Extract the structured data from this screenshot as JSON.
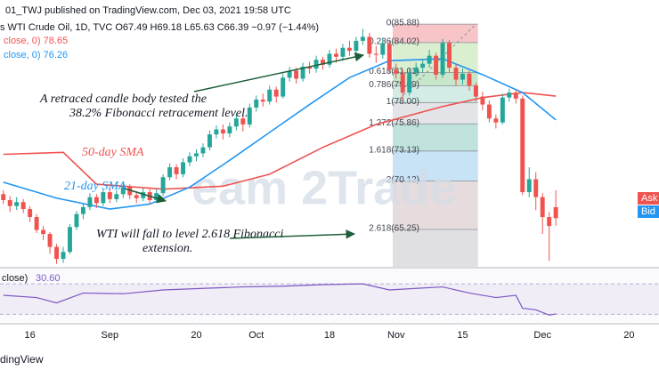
{
  "header": {
    "line1": "01_TWJ published on TradingView.com, Dec 03, 2021 19:58 UTC",
    "line2": "s WTI Crude Oil, 1D, TVC  O67.49  H69.18  L65.63  C66.39  −0.97 (−1.44%)",
    "line3": "close, 0)  78.65",
    "line4": "close, 0)  76.26",
    "watermark": "eam 2Trade",
    "footer": "dingView",
    "ask": "Ask",
    "bid": "Bid"
  },
  "chart_data": [
    {
      "type": "candlestick",
      "xlim": [
        -0.5,
        98.5
      ],
      "ylim": [
        61.5,
        88.3
      ],
      "xticks": [
        {
          "value": 4,
          "label": "16"
        },
        {
          "value": 16,
          "label": "Sep"
        },
        {
          "value": 29,
          "label": "20"
        },
        {
          "value": 38,
          "label": "Oct"
        },
        {
          "value": 49,
          "label": "18"
        },
        {
          "value": 59,
          "label": "Nov"
        },
        {
          "value": 69,
          "label": "15"
        },
        {
          "value": 81,
          "label": "Dec"
        },
        {
          "value": 94,
          "label": "20"
        }
      ],
      "up_color": "#26a69a",
      "down_color": "#ef5350",
      "x": [
        0,
        1,
        2,
        3,
        4,
        5,
        6,
        7,
        8,
        9,
        10,
        11,
        12,
        13,
        14,
        15,
        16,
        17,
        18,
        19,
        20,
        21,
        22,
        23,
        24,
        25,
        26,
        27,
        28,
        29,
        30,
        31,
        32,
        33,
        34,
        35,
        36,
        37,
        38,
        39,
        40,
        41,
        42,
        43,
        44,
        45,
        46,
        47,
        48,
        49,
        50,
        51,
        52,
        53,
        54,
        55,
        56,
        57,
        58,
        59,
        60,
        61,
        62,
        63,
        64,
        65,
        66,
        67,
        68,
        69,
        70,
        71,
        72,
        73,
        74,
        75,
        76,
        77,
        78,
        79,
        80,
        81,
        82,
        83
      ],
      "open": [
        68.8,
        68.2,
        67.6,
        68.0,
        67.3,
        66.5,
        65.2,
        64.8,
        63.5,
        62.3,
        63.0,
        65.5,
        66.8,
        67.5,
        68.5,
        67.9,
        69.0,
        68.3,
        68.8,
        69.5,
        68.7,
        68.4,
        69.0,
        68.2,
        68.9,
        70.5,
        71.5,
        70.8,
        72.0,
        72.6,
        72.9,
        73.5,
        74.8,
        75.3,
        74.9,
        75.6,
        76.4,
        75.8,
        77.5,
        78.3,
        78.1,
        79.3,
        78.6,
        80.5,
        81.2,
        80.4,
        81.6,
        81.4,
        82.3,
        81.8,
        82.9,
        82.6,
        83.5,
        83.2,
        84.2,
        84.6,
        82.9,
        82.8,
        83.9,
        81.3,
        80.9,
        79.0,
        81.0,
        81.5,
        81.9,
        82.7,
        80.8,
        84.0,
        81.5,
        80.3,
        80.9,
        79.7,
        78.6,
        77.8,
        76.4,
        76.0,
        78.5,
        79.0,
        78.4,
        69.0,
        70.3,
        68.5,
        66.5,
        67.49
      ],
      "high": [
        69.2,
        68.6,
        68.5,
        68.3,
        67.6,
        66.8,
        65.6,
        65.0,
        63.8,
        63.5,
        65.8,
        67.1,
        67.9,
        68.9,
        68.8,
        69.3,
        69.4,
        69.2,
        69.9,
        69.8,
        69.1,
        69.4,
        69.3,
        69.3,
        70.8,
        71.9,
        71.8,
        72.4,
        73.0,
        73.3,
        73.9,
        75.2,
        75.7,
        75.8,
        76.0,
        76.8,
        76.7,
        77.9,
        78.7,
        78.9,
        79.7,
        79.6,
        80.9,
        81.6,
        81.5,
        82.0,
        82.1,
        82.7,
        82.6,
        83.3,
        83.4,
        83.9,
        84.2,
        84.6,
        85.4,
        85.0,
        83.7,
        84.5,
        84.2,
        81.9,
        81.3,
        81.4,
        82.0,
        82.4,
        83.3,
        83.0,
        84.4,
        84.3,
        81.9,
        81.4,
        81.2,
        80.0,
        79.1,
        78.2,
        76.8,
        78.9,
        79.4,
        79.3,
        78.7,
        71.5,
        71.0,
        68.9,
        67.0,
        69.18
      ],
      "low": [
        67.8,
        67.0,
        67.2,
        66.9,
        66.0,
        64.9,
        64.2,
        62.8,
        61.8,
        61.9,
        62.8,
        65.2,
        66.3,
        67.2,
        67.4,
        67.6,
        67.9,
        68.0,
        68.4,
        68.3,
        67.9,
        68.1,
        67.8,
        67.9,
        68.6,
        70.2,
        70.3,
        70.5,
        71.6,
        72.1,
        72.5,
        73.2,
        74.4,
        74.3,
        74.5,
        75.2,
        75.1,
        75.5,
        77.1,
        77.6,
        77.8,
        78.0,
        78.4,
        80.1,
        79.9,
        80.1,
        80.9,
        81.0,
        81.3,
        81.5,
        82.0,
        82.2,
        82.7,
        82.9,
        83.8,
        82.5,
        82.0,
        82.4,
        80.9,
        80.4,
        78.2,
        78.7,
        80.6,
        81.0,
        81.5,
        80.3,
        80.5,
        81.0,
        79.7,
        79.8,
        79.2,
        78.1,
        77.2,
        76.0,
        75.4,
        75.8,
        78.1,
        77.9,
        68.7,
        68.5,
        67.2,
        64.8,
        62.1,
        65.63
      ],
      "close": [
        68.2,
        67.6,
        68.0,
        67.3,
        66.5,
        65.2,
        64.8,
        63.5,
        62.3,
        63.0,
        65.5,
        66.8,
        67.5,
        68.5,
        67.9,
        69.0,
        68.3,
        68.8,
        69.5,
        68.7,
        68.4,
        69.0,
        68.2,
        68.9,
        70.5,
        71.5,
        70.8,
        72.0,
        72.6,
        72.9,
        73.5,
        74.8,
        75.3,
        74.9,
        75.6,
        76.4,
        75.8,
        77.5,
        78.3,
        78.1,
        79.3,
        78.6,
        80.5,
        81.2,
        80.4,
        81.6,
        81.4,
        82.3,
        81.8,
        82.9,
        82.6,
        83.5,
        83.2,
        84.2,
        84.6,
        82.9,
        82.8,
        83.9,
        81.3,
        80.9,
        79.0,
        81.0,
        81.5,
        81.9,
        82.7,
        80.8,
        84.0,
        81.5,
        80.3,
        80.9,
        79.7,
        78.6,
        77.8,
        76.4,
        76.0,
        78.5,
        79.0,
        78.4,
        69.0,
        70.3,
        68.5,
        66.5,
        65.6,
        66.39
      ],
      "overlays": [
        {
          "name": "50-day SMA",
          "color": "#ef5350",
          "x": [
            0,
            9,
            14,
            24,
            33,
            40,
            48,
            56,
            66,
            72,
            78,
            83
          ],
          "values": [
            72.8,
            73.0,
            69.8,
            69.3,
            69.6,
            70.8,
            73.5,
            75.8,
            77.6,
            78.5,
            79.0,
            78.65
          ]
        },
        {
          "name": "21-day SMA",
          "color": "#2196f3",
          "x": [
            0,
            8,
            16,
            22,
            28,
            34,
            40,
            46,
            52,
            58,
            66,
            72,
            78,
            83
          ],
          "values": [
            70.0,
            68.4,
            67.3,
            67.8,
            69.5,
            72.2,
            75.0,
            77.8,
            80.5,
            82.2,
            82.4,
            80.8,
            79.0,
            76.26
          ]
        }
      ],
      "fib_levels": [
        {
          "label": "0(85.88)",
          "value": 85.88,
          "color": "#f7c5c8"
        },
        {
          "label": "0.236(84.02)",
          "value": 84.02,
          "color": "#d9efd0"
        },
        {
          "label": "0.618(81.01)",
          "value": 81.01,
          "color": "#c8e6c9"
        },
        {
          "label": "0.786(79.69)",
          "value": 79.69,
          "color": "#d4ece6"
        },
        {
          "label": "1(78.00)",
          "value": 78.0,
          "color": "#e3e4e7"
        },
        {
          "label": "1.272(75.86)",
          "value": 75.86,
          "color": "#bfe3dc"
        },
        {
          "label": "1.618(73.13)",
          "value": 73.13,
          "color": "#c8e2f6"
        },
        {
          "label": "2(70.12)",
          "value": 70.12,
          "color": "#e6dcdd"
        },
        {
          "label": "2.618(65.25)",
          "value": 65.25,
          "color": "#e0e0e3"
        }
      ],
      "annotations": {
        "retrace1": "A retraced candle body tested the",
        "retrace2": "38.2% Fibonacci retracement level.",
        "sma50": "50-day SMA",
        "sma21": "21-day SMA",
        "fall1": "WTI  will fall to level 2.618 Fibonacci",
        "fall2": "extension."
      }
    },
    {
      "type": "line",
      "title": "close)",
      "last_value": {
        "value": 30.6,
        "label": "30.60"
      },
      "color": "#7e57c2",
      "ylim": [
        20,
        90
      ],
      "bands": [
        70,
        30
      ],
      "x": [
        0,
        5,
        8,
        12,
        18,
        24,
        30,
        36,
        42,
        48,
        54,
        58,
        62,
        66,
        70,
        74,
        77,
        78,
        80,
        82,
        83
      ],
      "values": [
        55,
        52,
        45,
        58,
        57,
        62,
        64,
        66,
        67,
        69,
        70,
        62,
        64,
        66,
        58,
        52,
        55,
        38,
        36,
        29,
        30.6
      ]
    }
  ]
}
